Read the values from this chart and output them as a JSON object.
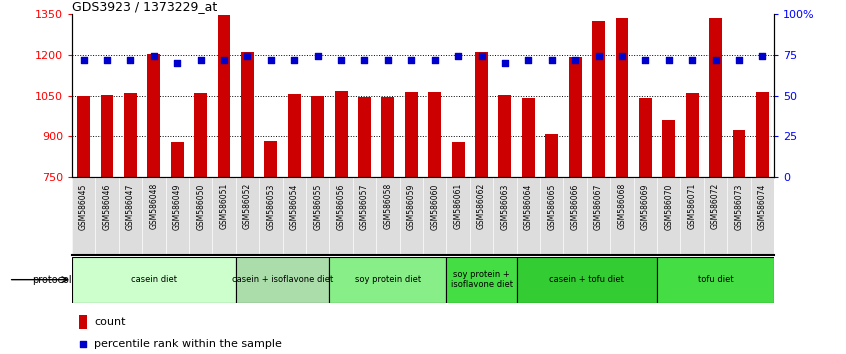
{
  "title": "GDS3923 / 1373229_at",
  "samples": [
    "GSM586045",
    "GSM586046",
    "GSM586047",
    "GSM586048",
    "GSM586049",
    "GSM586050",
    "GSM586051",
    "GSM586052",
    "GSM586053",
    "GSM586054",
    "GSM586055",
    "GSM586056",
    "GSM586057",
    "GSM586058",
    "GSM586059",
    "GSM586060",
    "GSM586061",
    "GSM586062",
    "GSM586063",
    "GSM586064",
    "GSM586065",
    "GSM586066",
    "GSM586067",
    "GSM586068",
    "GSM586069",
    "GSM586070",
    "GSM586071",
    "GSM586072",
    "GSM586073",
    "GSM586074"
  ],
  "counts": [
    1048,
    1052,
    1060,
    1205,
    878,
    1060,
    1347,
    1210,
    882,
    1055,
    1050,
    1067,
    1045,
    1043,
    1065,
    1065,
    879,
    1210,
    1052,
    1040,
    910,
    1192,
    1325,
    1335,
    1042,
    960,
    1060,
    1335,
    925,
    1065
  ],
  "percentile_ranks": [
    72,
    72,
    72,
    74,
    70,
    72,
    72,
    74,
    72,
    72,
    74,
    72,
    72,
    72,
    72,
    72,
    74,
    74,
    70,
    72,
    72,
    72,
    74,
    74,
    72,
    72,
    72,
    72,
    72,
    74
  ],
  "groups": [
    {
      "label": "casein diet",
      "start": 0,
      "end": 7,
      "color": "#ccffcc"
    },
    {
      "label": "casein + isoflavone diet",
      "start": 7,
      "end": 11,
      "color": "#aaddaa"
    },
    {
      "label": "soy protein diet",
      "start": 11,
      "end": 16,
      "color": "#88ee88"
    },
    {
      "label": "soy protein +\nisoflavone diet",
      "start": 16,
      "end": 19,
      "color": "#44dd44"
    },
    {
      "label": "casein + tofu diet",
      "start": 19,
      "end": 25,
      "color": "#44cc44"
    },
    {
      "label": "tofu diet",
      "start": 25,
      "end": 30,
      "color": "#44dd44"
    }
  ],
  "group_colors": [
    "#ccffcc",
    "#aaddaa",
    "#88ee88",
    "#44dd44",
    "#44cc44",
    "#44dd44"
  ],
  "bar_color": "#cc0000",
  "dot_color": "#0000cc",
  "ylim_left": [
    750,
    1350
  ],
  "ylim_right": [
    0,
    100
  ],
  "yticks_left": [
    750,
    900,
    1050,
    1200,
    1350
  ],
  "yticks_right": [
    0,
    25,
    50,
    75,
    100
  ],
  "ytick_right_labels": [
    "0",
    "25",
    "50",
    "75",
    "100%"
  ],
  "gridlines": [
    900,
    1050,
    1200
  ],
  "xlabel_color": "#555555",
  "label_bg_color": "#dddddd",
  "background_color": "#ffffff"
}
